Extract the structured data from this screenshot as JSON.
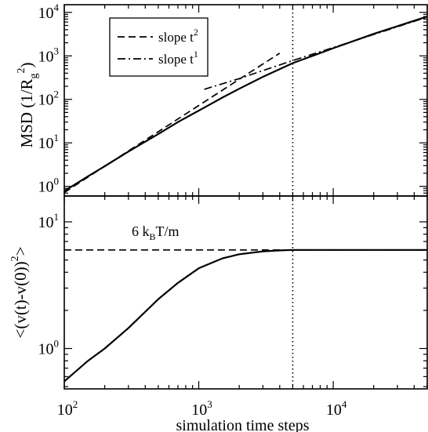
{
  "chart_data": [
    {
      "type": "line",
      "xscale": "log",
      "yscale": "log",
      "xlim": [
        100,
        50000
      ],
      "ylim": [
        0.6,
        15000
      ],
      "ylabel": {
        "main": "MSD (1/R",
        "sub": "g",
        "sup": "2",
        "close": ")"
      },
      "xticks": [
        {
          "value": 100,
          "base": "10",
          "exp": "2"
        },
        {
          "value": 1000,
          "base": "10",
          "exp": "3"
        },
        {
          "value": 10000,
          "base": "10",
          "exp": "4"
        }
      ],
      "yticks": [
        {
          "value": 1,
          "base": "10",
          "exp": "0"
        },
        {
          "value": 10,
          "base": "10",
          "exp": "1"
        },
        {
          "value": 100,
          "base": "10",
          "exp": "2"
        },
        {
          "value": 1000,
          "base": "10",
          "exp": "3"
        },
        {
          "value": 10000,
          "base": "10",
          "exp": "4"
        }
      ],
      "legend": {
        "placement": "top-left",
        "entries": [
          {
            "label": "slope t",
            "sup": "2",
            "dash": "dashed"
          },
          {
            "label": "slope t",
            "sup": "1",
            "dash": "dashdot"
          }
        ]
      },
      "series": [
        {
          "style": "solid",
          "x": [
            100,
            150,
            200,
            300,
            500,
            700,
            1000,
            1500,
            2000,
            3000,
            5000,
            7000,
            10000,
            20000,
            50000
          ],
          "y": [
            0.78,
            1.7,
            2.9,
            6.3,
            16,
            30,
            55,
            110,
            175,
            330,
            680,
            1000,
            1500,
            3200,
            8000
          ]
        },
        {
          "style": "dashed",
          "x": [
            100,
            200,
            500,
            1000,
            2000,
            3000,
            4000
          ],
          "y": [
            0.72,
            2.9,
            18,
            72,
            290,
            650,
            1150
          ]
        },
        {
          "style": "dashdot",
          "x": [
            1100,
            2000,
            3000,
            5000,
            10000,
            20000,
            50000
          ],
          "y": [
            170,
            300,
            460,
            780,
            1550,
            3100,
            7800
          ]
        }
      ],
      "vline": {
        "x": 5000,
        "style": "dotted"
      }
    },
    {
      "type": "line",
      "xscale": "log",
      "yscale": "log",
      "xlim": [
        100,
        50000
      ],
      "ylim": [
        0.48,
        16
      ],
      "xlabel": "simulation time steps",
      "ylabel": {
        "main": "<(v(t)-v(0))",
        "sup": "2",
        "close": ">"
      },
      "xticks": [
        {
          "value": 100,
          "base": "10",
          "exp": "2"
        },
        {
          "value": 1000,
          "base": "10",
          "exp": "3"
        },
        {
          "value": 10000,
          "base": "10",
          "exp": "4"
        }
      ],
      "yticks": [
        {
          "value": 1,
          "base": "10",
          "exp": "0"
        },
        {
          "value": 10,
          "base": "10",
          "exp": "1"
        }
      ],
      "annotation": {
        "pre": "6 k",
        "sub": "B",
        "post": "T/m"
      },
      "hline": {
        "y": 6,
        "style": "dashed"
      },
      "vline": {
        "x": 5000,
        "style": "dotted"
      },
      "series": [
        {
          "style": "solid",
          "x": [
            100,
            150,
            200,
            300,
            400,
            500,
            700,
            1000,
            1500,
            2000,
            3000,
            4000,
            5000,
            10000,
            50000
          ],
          "y": [
            0.55,
            0.8,
            1.0,
            1.45,
            1.95,
            2.45,
            3.3,
            4.3,
            5.15,
            5.55,
            5.85,
            5.95,
            6.0,
            6.0,
            6.0
          ]
        }
      ]
    }
  ]
}
